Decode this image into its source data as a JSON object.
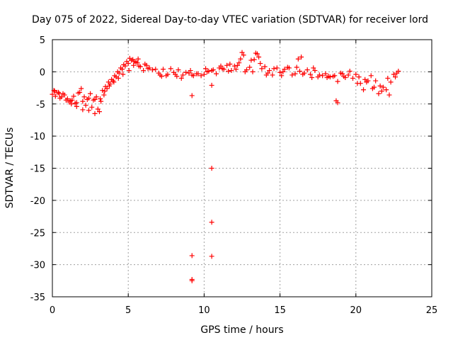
{
  "chart_data": {
    "type": "scatter",
    "title": "Day 075 of 2022, Sidereal Day-to-day VTEC variation (SDTVAR) for receiver lord",
    "xlabel": "GPS time / hours",
    "ylabel": "SDTVAR / TECUs",
    "xlim": [
      0,
      25
    ],
    "ylim": [
      -35,
      5
    ],
    "xticks": [
      0,
      5,
      10,
      15,
      20,
      25
    ],
    "yticks": [
      5,
      0,
      -5,
      -10,
      -15,
      -20,
      -25,
      -30,
      -35
    ],
    "grid": true,
    "marker": "+",
    "marker_color": "#ff0000",
    "series": [
      {
        "name": "SDTVAR",
        "x": [
          0.0,
          0.2,
          0.4,
          0.6,
          0.8,
          1.0,
          1.2,
          1.4,
          1.6,
          1.8,
          2.0,
          2.2,
          2.4,
          2.6,
          2.8,
          3.0,
          3.1,
          3.2,
          3.4,
          3.6,
          3.8,
          4.0,
          4.2,
          4.4,
          4.6,
          4.8,
          5.0,
          5.2,
          5.4,
          5.6,
          5.8,
          6.0,
          6.3,
          6.6,
          7.0,
          7.3,
          7.6,
          8.0,
          8.3,
          8.6,
          9.0,
          9.3,
          9.6,
          10.0,
          10.3,
          10.6,
          11.0,
          11.3,
          11.6,
          12.0,
          12.3,
          12.6,
          13.0,
          13.3,
          13.6,
          14.0,
          14.3,
          14.6,
          15.0,
          15.3,
          15.6,
          16.0,
          16.3,
          16.6,
          17.0,
          17.3,
          17.6,
          18.0,
          18.3,
          18.6,
          19.0,
          19.3,
          19.6,
          20.0,
          20.3,
          20.6,
          21.0,
          21.3,
          21.6,
          22.0,
          22.3,
          22.6,
          22.8,
          0.1,
          0.3,
          0.5,
          0.7,
          1.1,
          1.3,
          1.5,
          1.7,
          1.9,
          2.1,
          2.3,
          2.5,
          2.7,
          2.9,
          3.3,
          3.5,
          3.7,
          3.9,
          4.1,
          4.3,
          4.5,
          4.7,
          4.9,
          5.1,
          5.3,
          5.5,
          5.7,
          6.1,
          6.4,
          6.8,
          7.1,
          7.5,
          7.8,
          8.1,
          8.5,
          8.8,
          9.1,
          9.5,
          9.8,
          10.1,
          10.5,
          10.8,
          11.1,
          11.5,
          11.8,
          12.1,
          12.5,
          12.8,
          13.1,
          13.5,
          13.8,
          14.1,
          14.5,
          14.8,
          15.1,
          15.5,
          15.8,
          16.1,
          16.5,
          16.8,
          17.1,
          17.5,
          17.8,
          18.1,
          18.5,
          18.8,
          19.1,
          19.5,
          19.8,
          20.1,
          20.5,
          20.8,
          21.1,
          21.5,
          21.8,
          22.1,
          22.5,
          0.15,
          0.45,
          0.9,
          1.25,
          1.6,
          2.0,
          2.4,
          2.8,
          3.15,
          3.45,
          3.75,
          4.05,
          4.35,
          4.65,
          5.05,
          5.35,
          5.65,
          6.2,
          7.2,
          8.2,
          9.2,
          10.2,
          11.2,
          11.7,
          12.2,
          12.4,
          12.7,
          13.2,
          13.4,
          13.7,
          14.2,
          15.2,
          16.2,
          16.4,
          17.2,
          18.2,
          19.2,
          20.2,
          20.7,
          21.2,
          21.7,
          22.2,
          22.7,
          18.7,
          18.8,
          9.2,
          10.5,
          10.5,
          10.5,
          10.5,
          9.2,
          9.2,
          9.2
        ],
        "y": [
          -3.5,
          -3.8,
          -3.2,
          -3.9,
          -3.6,
          -4.2,
          -4.5,
          -3.8,
          -4.8,
          -3.2,
          -4.6,
          -5.2,
          -4.1,
          -5.5,
          -4.3,
          -5.8,
          -6.2,
          -4.6,
          -3.6,
          -2.6,
          -1.9,
          -1.4,
          -0.8,
          -0.2,
          0.4,
          0.9,
          1.3,
          1.8,
          1.6,
          1.4,
          0.8,
          0.2,
          0.5,
          0.3,
          -0.2,
          0.4,
          -0.4,
          -0.1,
          0.3,
          -0.5,
          -0.2,
          -0.6,
          -0.3,
          -0.4,
          0.1,
          0.3,
          0.6,
          0.4,
          0.1,
          0.9,
          1.4,
          2.6,
          0.7,
          1.9,
          2.3,
          0.8,
          0.2,
          0.5,
          -0.1,
          0.4,
          0.6,
          -0.3,
          0.1,
          -0.2,
          -0.4,
          0.2,
          -0.5,
          -0.3,
          -0.8,
          -0.6,
          -0.2,
          -0.9,
          0.1,
          -0.4,
          -1.8,
          -1.2,
          -0.6,
          -1.4,
          -2.2,
          -2.8,
          -1.6,
          -0.8,
          0.1,
          -2.9,
          -3.2,
          -4.1,
          -3.4,
          -4.7,
          -4.4,
          -4.9,
          -3.3,
          -2.6,
          -3.9,
          -4.3,
          -3.4,
          -4.4,
          -3.9,
          -2.9,
          -2.3,
          -1.6,
          -1.2,
          -0.6,
          0.0,
          0.6,
          1.1,
          1.6,
          2.1,
          1.9,
          1.5,
          0.9,
          1.2,
          0.6,
          0.4,
          -0.5,
          -0.6,
          0.5,
          -0.4,
          -1.0,
          -0.1,
          0.2,
          -0.3,
          -0.6,
          0.5,
          0.2,
          -0.3,
          0.9,
          1.0,
          0.2,
          0.4,
          3.0,
          0.3,
          1.8,
          2.8,
          0.5,
          -0.5,
          -0.5,
          0.6,
          -0.6,
          0.7,
          -0.5,
          0.7,
          -0.4,
          0.3,
          -0.9,
          -0.8,
          -0.6,
          -0.9,
          -0.7,
          -1.5,
          -0.3,
          -0.5,
          -1.0,
          -1.8,
          -2.8,
          -1.4,
          -2.6,
          -3.4,
          -2.4,
          -1.0,
          -0.4,
          -3.0,
          -3.4,
          -4.4,
          -5.0,
          -5.4,
          -5.9,
          -6.0,
          -6.5,
          -4.2,
          -3.0,
          -2.2,
          -1.6,
          -1.0,
          -0.4,
          0.2,
          1.0,
          2.0,
          1.0,
          -0.7,
          -0.7,
          -0.5,
          0.0,
          0.5,
          1.2,
          1.0,
          2.0,
          0.0,
          0.0,
          2.9,
          1.3,
          -0.2,
          0.0,
          2.0,
          2.3,
          0.6,
          -0.7,
          -0.7,
          -0.8,
          -1.6,
          -2.4,
          -3.0,
          -3.6,
          -0.2,
          -4.5,
          -4.8,
          -3.7,
          -2.1,
          -15.0,
          -23.4,
          -28.7,
          -28.6,
          -32.3,
          -32.5
        ]
      }
    ]
  }
}
